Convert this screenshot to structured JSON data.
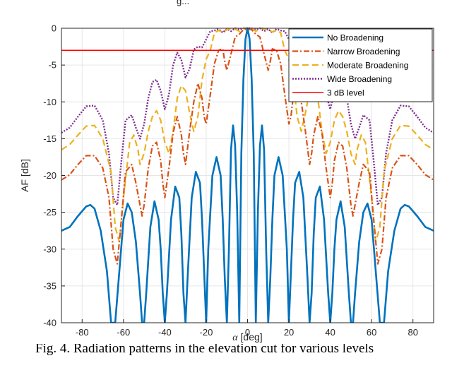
{
  "figure_text": {
    "top_partial": "g...",
    "caption": "Fig. 4.  Radiation patterns in the elevation cut for various levels"
  },
  "chart_data": {
    "type": "line",
    "xlabel": "α [deg]",
    "ylabel": "AF [dB]",
    "xlim": [
      -90,
      90
    ],
    "ylim": [
      -40,
      0
    ],
    "xticks": [
      -80,
      -60,
      -40,
      -20,
      0,
      20,
      40,
      60,
      80
    ],
    "yticks": [
      0,
      -5,
      -10,
      -15,
      -20,
      -25,
      -30,
      -35,
      -40
    ],
    "grid": true,
    "legend_position": "top-right",
    "series": [
      {
        "name": "No Broadening",
        "color": "#0072BD",
        "style": "solid",
        "x": [
          -90,
          -86,
          -82,
          -78,
          -76,
          -74,
          -71,
          -68,
          -66,
          -65,
          -64,
          -62,
          -60,
          -58,
          -56,
          -54,
          -52,
          -51,
          -50,
          -49,
          -47,
          -45,
          -43,
          -42,
          -41,
          -40,
          -39,
          -37,
          -35,
          -33,
          -32,
          -31,
          -30,
          -29,
          -27,
          -25,
          -23,
          -22,
          -21,
          -20,
          -19,
          -17,
          -15,
          -13,
          -12,
          -11,
          -10,
          -9,
          -8,
          -7,
          -6,
          -5,
          -4,
          -3,
          -2,
          -1,
          0,
          1,
          2,
          3,
          4,
          5,
          6,
          7,
          8,
          9,
          10,
          11,
          12,
          13,
          15,
          17,
          19,
          20,
          21,
          22,
          23,
          25,
          27,
          29,
          30,
          31,
          32,
          33,
          35,
          37,
          39,
          40,
          41,
          42,
          43,
          45,
          47,
          49,
          50,
          51,
          52,
          54,
          56,
          58,
          60,
          62,
          64,
          65,
          66,
          68,
          71,
          74,
          76,
          78,
          82,
          86,
          90
        ],
        "y": [
          -27.5,
          -27,
          -25.5,
          -24.2,
          -24,
          -24.5,
          -27.5,
          -33,
          -40,
          -40,
          -40,
          -33,
          -26,
          -23.8,
          -25,
          -29,
          -36,
          -40,
          -40,
          -36,
          -27,
          -23.5,
          -26,
          -30,
          -36,
          -40,
          -36,
          -26,
          -21.5,
          -23,
          -28,
          -36,
          -40,
          -34,
          -23,
          -19.5,
          -21,
          -26,
          -33,
          -40,
          -30,
          -20,
          -17.5,
          -20,
          -26,
          -34,
          -40,
          -30,
          -16.5,
          -13.2,
          -16,
          -25,
          -40,
          -17,
          -7,
          -1.5,
          0,
          -1.5,
          -7,
          -17,
          -40,
          -25,
          -16,
          -13.2,
          -16.5,
          -30,
          -40,
          -34,
          -26,
          -20,
          -17.5,
          -20,
          -30,
          -40,
          -33,
          -26,
          -21,
          -19.5,
          -23,
          -34,
          -40,
          -36,
          -28,
          -23,
          -21.5,
          -26,
          -36,
          -40,
          -36,
          -30,
          -26,
          -23.5,
          -27,
          -36,
          -40,
          -40,
          -36,
          -29,
          -25,
          -23.8,
          -26,
          -33,
          -40,
          -40,
          -40,
          -33,
          -27.5,
          -24.5,
          -24,
          -24.2,
          -25.5,
          -27,
          -27.5
        ]
      },
      {
        "name": "Narrow Broadening",
        "color": "#D95319",
        "style": "dashdot",
        "x": [
          -90,
          -86,
          -82,
          -78,
          -74,
          -70,
          -67,
          -65,
          -63,
          -61,
          -59,
          -56,
          -54,
          -52,
          -51,
          -50,
          -48,
          -46,
          -44,
          -42,
          -41,
          -40,
          -38,
          -36,
          -34,
          -32,
          -31,
          -30,
          -28,
          -26,
          -24,
          -22,
          -21,
          -20,
          -18,
          -16,
          -14,
          -12,
          -11,
          -10,
          -8,
          -6,
          -4,
          -2,
          0,
          2,
          4,
          6,
          8,
          10,
          11,
          12,
          14,
          16,
          18,
          20,
          21,
          22,
          24,
          26,
          28,
          30,
          31,
          32,
          34,
          36,
          38,
          40,
          41,
          42,
          44,
          46,
          48,
          50,
          51,
          52,
          54,
          56,
          59,
          61,
          63,
          65,
          67,
          70,
          74,
          78,
          82,
          86,
          90
        ],
        "y": [
          -20.6,
          -19.9,
          -18.5,
          -17.3,
          -17.3,
          -19,
          -23,
          -30,
          -32,
          -26,
          -19.5,
          -18.5,
          -21,
          -24,
          -25.5,
          -24,
          -19,
          -16,
          -15.5,
          -18,
          -21,
          -23,
          -19,
          -14.2,
          -12,
          -14.5,
          -17,
          -18.5,
          -14,
          -10,
          -7.5,
          -9.5,
          -12,
          -13,
          -9,
          -4.8,
          -3,
          -2.8,
          -4.5,
          -5.7,
          -3.5,
          -1.2,
          -0.8,
          -0.2,
          -0.1,
          -0.2,
          -0.8,
          -1.2,
          -3.5,
          -5.7,
          -4.5,
          -2.8,
          -3,
          -4.8,
          -9,
          -13,
          -12,
          -9.5,
          -7.5,
          -10,
          -14,
          -18.5,
          -17,
          -14.5,
          -12,
          -14.2,
          -19,
          -23,
          -21,
          -18,
          -15.5,
          -16,
          -19,
          -24,
          -25.5,
          -24,
          -21,
          -18.5,
          -19.5,
          -26,
          -32,
          -30,
          -23,
          -19,
          -17.3,
          -17.3,
          -18.5,
          -19.9,
          -20.6
        ]
      },
      {
        "name": "Moderate Broadening",
        "color": "#EDB120",
        "style": "dashed",
        "x": [
          -90,
          -86,
          -82,
          -78,
          -74,
          -70,
          -66,
          -64,
          -62,
          -60,
          -57,
          -55,
          -53,
          -52,
          -50,
          -48,
          -46,
          -44,
          -42,
          -40,
          -38,
          -36,
          -34,
          -32,
          -30,
          -28,
          -26,
          -24,
          -22,
          -20,
          -18,
          -16,
          -14,
          -12,
          -10,
          -7,
          -4,
          -2,
          0,
          2,
          4,
          7,
          10,
          12,
          14,
          16,
          18,
          20,
          22,
          24,
          26,
          28,
          30,
          32,
          34,
          36,
          38,
          40,
          42,
          44,
          46,
          48,
          50,
          52,
          53,
          55,
          57,
          60,
          62,
          64,
          66,
          70,
          74,
          78,
          82,
          86,
          90
        ],
        "y": [
          -16.5,
          -15.8,
          -14.5,
          -13.3,
          -13.2,
          -15,
          -19.5,
          -27,
          -29,
          -23,
          -15.5,
          -14.5,
          -16.5,
          -18.5,
          -17,
          -14,
          -12,
          -11.2,
          -12.5,
          -15.5,
          -17,
          -14,
          -9.5,
          -7.8,
          -8.5,
          -11.5,
          -14,
          -12,
          -7,
          -4.2,
          -3,
          -0.6,
          -0.3,
          -0.5,
          -0.2,
          0,
          -0.4,
          0,
          0,
          0,
          -0.4,
          0,
          -0.2,
          -0.5,
          -0.3,
          -0.6,
          -3,
          -4.2,
          -7,
          -12,
          -14,
          -11.5,
          -8.5,
          -7.8,
          -9.5,
          -14,
          -17,
          -15.5,
          -12.5,
          -11.2,
          -12,
          -14,
          -17,
          -18.5,
          -16.5,
          -14.5,
          -15.5,
          -23,
          -29,
          -27,
          -19.5,
          -15,
          -13.2,
          -13.3,
          -14.5,
          -15.8,
          -16.5
        ]
      },
      {
        "name": "Wide Broadening",
        "color": "#7E2F8E",
        "style": "dotted",
        "x": [
          -90,
          -86,
          -82,
          -78,
          -74,
          -70,
          -67,
          -65,
          -63,
          -61,
          -59,
          -56,
          -54,
          -52,
          -50,
          -48,
          -46,
          -44,
          -42,
          -40,
          -38,
          -36,
          -34,
          -32,
          -30,
          -28,
          -26,
          -24,
          -22,
          -20,
          -18,
          -16,
          -14,
          -12,
          -10,
          -8,
          -6,
          -4,
          -2,
          0,
          2,
          4,
          6,
          8,
          10,
          12,
          14,
          16,
          18,
          20,
          22,
          24,
          26,
          28,
          30,
          32,
          34,
          36,
          38,
          40,
          42,
          44,
          46,
          48,
          50,
          52,
          54,
          56,
          59,
          61,
          63,
          65,
          67,
          70,
          74,
          78,
          82,
          86,
          90
        ],
        "y": [
          -14.2,
          -13.5,
          -12,
          -10.6,
          -10.5,
          -12.5,
          -17,
          -23,
          -24,
          -18,
          -12.5,
          -11.8,
          -13.5,
          -15,
          -13,
          -9.5,
          -7.3,
          -7,
          -8.5,
          -11,
          -9,
          -5,
          -3.3,
          -4.3,
          -6.7,
          -5.5,
          -2.9,
          -2.5,
          -2.6,
          -1.5,
          -0.4,
          -0.3,
          -0.1,
          -0.6,
          -0.1,
          -0.4,
          0,
          -0.2,
          0,
          0,
          0,
          -0.2,
          0,
          -0.4,
          -0.1,
          -0.6,
          -0.1,
          -0.3,
          -0.4,
          -1.5,
          -2.6,
          -2.5,
          -2.9,
          -5.5,
          -6.7,
          -4.3,
          -3.3,
          -5,
          -9,
          -11,
          -8.5,
          -7,
          -7.3,
          -9.5,
          -13,
          -15,
          -13.5,
          -11.8,
          -12.5,
          -18,
          -24,
          -23,
          -17,
          -12.5,
          -10.5,
          -10.6,
          -12,
          -13.5,
          -14.2
        ]
      },
      {
        "name": "3 dB level",
        "color": "#FF0000",
        "style": "solid",
        "x": [
          -90,
          90
        ],
        "y": [
          -3,
          -3
        ]
      }
    ]
  }
}
